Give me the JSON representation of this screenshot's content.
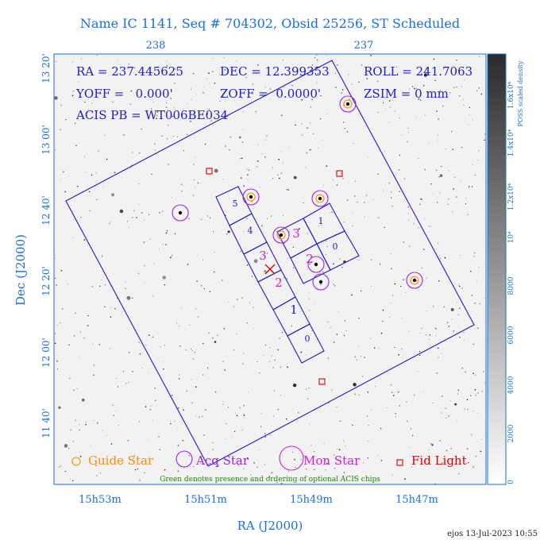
{
  "title": "Name IC 1141, Seq # 704302, Obsid 25256, ST Scheduled",
  "colors": {
    "axis_text": "#1a6fd6",
    "info_text": "#1c1cc8",
    "field": "#1c1cc8",
    "guide": "#ff8c00",
    "acq": "#a020f0",
    "mon": "#d020d0",
    "fid": "#dd0000",
    "green": "#1a8a00",
    "background": "#f2f2f2"
  },
  "info": {
    "ra": "RA = 237.445625",
    "dec": "DEC = 12.399353",
    "roll": "ROLL = 241.7063",
    "yoff": "YOFF =   0.000'",
    "zoff": "ZOFF =  0.0000'",
    "zsim": "ZSIM = 0 mm",
    "acis_pb": "ACIS PB = WT006BE034"
  },
  "top_ticks": [
    "238",
    "237"
  ],
  "x_ticks": [
    "15h53m",
    "15h51m",
    "15h49m",
    "15h47m"
  ],
  "y_ticks": [
    "13 20'",
    "13 00'",
    "12 40'",
    "12 20'",
    "12 00'",
    "11 40'"
  ],
  "x_label": "RA (J2000)",
  "y_label": "Dec (J2000)",
  "colorbar": {
    "label": "POSS scaled density",
    "ticks": [
      "0",
      "2000",
      "4000",
      "6000",
      "8000",
      "10^4",
      "1.2x10^4",
      "1.4x10^4",
      "1.6x10^4"
    ],
    "ticks_display": [
      "0",
      "2000",
      "4000",
      "6000",
      "8000",
      "10⁴",
      "1.2x10⁴",
      "1.4x10⁴",
      "1.6x10⁴"
    ]
  },
  "chips_s": [
    "5",
    "4",
    "3",
    "2",
    "1",
    "0"
  ],
  "chips_i": [
    "1",
    "0",
    "3",
    "2"
  ],
  "legend": {
    "guide": "Guide Star",
    "acq": "Acq Star",
    "mon": "Mon Star",
    "fid": "Fid Light",
    "note": "Green denotes presence and ordering of optional ACIS chips"
  },
  "footer": "ejos 13-Jul-2023 10:55"
}
